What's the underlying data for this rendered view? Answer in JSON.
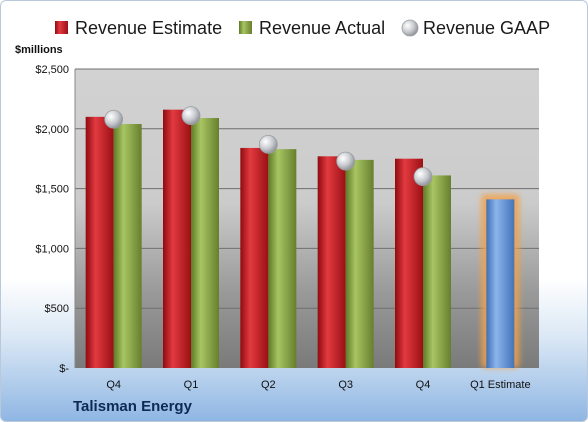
{
  "chart_data": {
    "type": "bar",
    "unit_label": "$millions",
    "categories": [
      "Q4",
      "Q1",
      "Q2",
      "Q3",
      "Q4",
      "Q1 Estimate"
    ],
    "series": [
      {
        "name": "Revenue Estimate",
        "kind": "bar",
        "color": "#c0151b",
        "values": [
          2100,
          2160,
          1840,
          1770,
          1750,
          null
        ]
      },
      {
        "name": "Revenue Actual",
        "kind": "bar",
        "color": "#7e9d3a",
        "values": [
          2040,
          2090,
          1830,
          1740,
          1610,
          null
        ]
      },
      {
        "name": "Revenue GAAP",
        "kind": "marker",
        "color": "#c9ccd0",
        "values": [
          2080,
          2110,
          1870,
          1730,
          1600,
          null
        ]
      },
      {
        "name": "",
        "kind": "bar",
        "color": "#5b8fd6",
        "highlight": "#f2a14a",
        "values": [
          null,
          null,
          null,
          null,
          null,
          1410
        ]
      }
    ],
    "yticks": [
      "$-",
      "$500",
      "$1,000",
      "$1,500",
      "$2,000",
      "$2,500"
    ],
    "ytick_values": [
      0,
      500,
      1000,
      1500,
      2000,
      2500
    ],
    "ylim": [
      0,
      2500
    ],
    "grid": true,
    "legend_position": "top"
  },
  "company": "Talisman Energy"
}
